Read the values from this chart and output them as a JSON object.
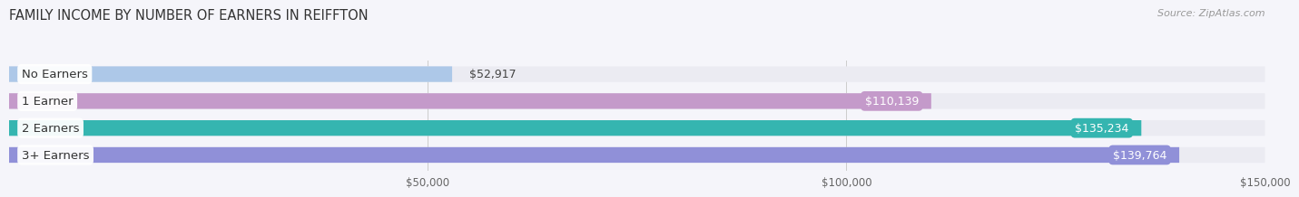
{
  "title": "FAMILY INCOME BY NUMBER OF EARNERS IN REIFFTON",
  "source": "Source: ZipAtlas.com",
  "categories": [
    "No Earners",
    "1 Earner",
    "2 Earners",
    "3+ Earners"
  ],
  "values": [
    52917,
    110139,
    135234,
    139764
  ],
  "bar_colors": [
    "#adc8e8",
    "#c49aca",
    "#35b5b0",
    "#9090d8"
  ],
  "bar_bg_color": "#ebebf2",
  "label_value_colors": [
    "#555555",
    "#ffffff",
    "#ffffff",
    "#ffffff"
  ],
  "xlim": [
    0,
    150000
  ],
  "xstart": 30000,
  "xticks": [
    50000,
    100000,
    150000
  ],
  "xtick_labels": [
    "$50,000",
    "$100,000",
    "$150,000"
  ],
  "title_fontsize": 10.5,
  "source_fontsize": 8,
  "cat_label_fontsize": 9.5,
  "val_label_fontsize": 9,
  "tick_fontsize": 8.5,
  "bar_height": 0.58,
  "background_color": "#f5f5fa"
}
